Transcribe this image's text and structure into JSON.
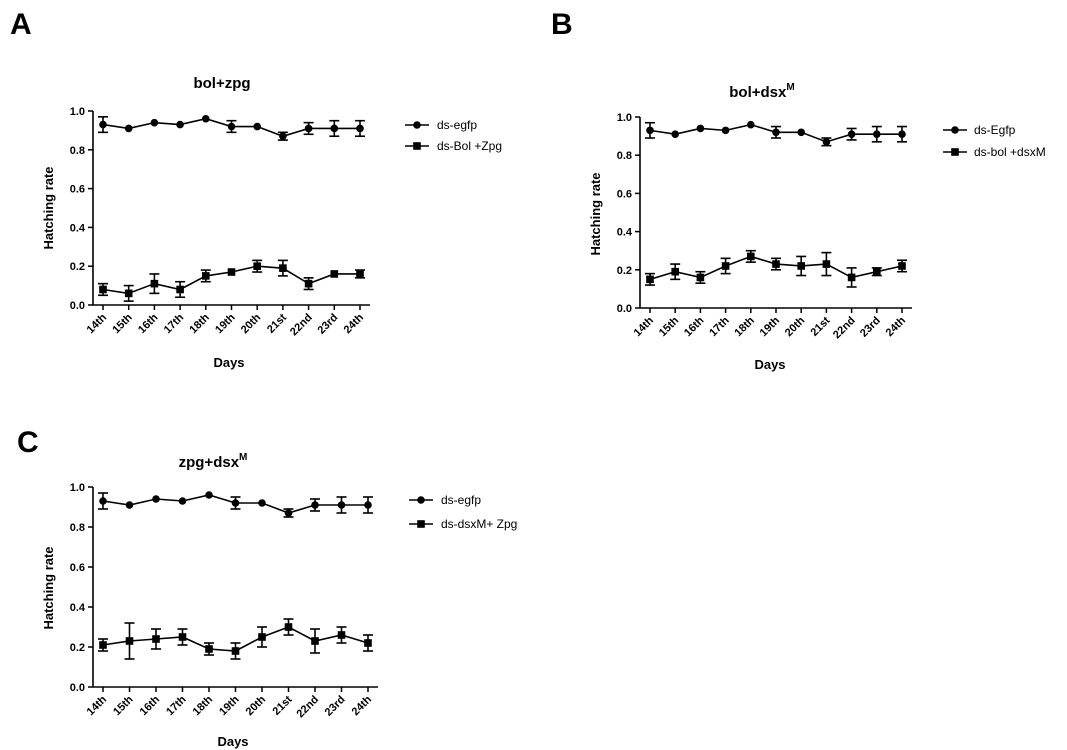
{
  "panels": [
    {
      "letter": "A",
      "title": {
        "main": "bol+zpg",
        "sup": ""
      },
      "chart_data": {
        "type": "line",
        "title": "bol+zpg",
        "xlabel": "Days",
        "ylabel": "Hatching rate",
        "categories": [
          "14th",
          "15th",
          "16th",
          "17th",
          "18th",
          "19th",
          "20th",
          "21st",
          "22nd",
          "23rd",
          "24th"
        ],
        "ylim": [
          0,
          1.0
        ],
        "yticks": [
          "0.0",
          "0.2",
          "0.4",
          "0.6",
          "0.8",
          "1.0"
        ],
        "grid": false,
        "legend_position": "right",
        "series": [
          {
            "name": "ds-egfp",
            "marker": "circle",
            "values": [
              0.93,
              0.91,
              0.94,
              0.93,
              0.96,
              0.92,
              0.92,
              0.87,
              0.91,
              0.91,
              0.91
            ],
            "errors": [
              0.04,
              0.0,
              0.0,
              0.0,
              0.0,
              0.03,
              0.0,
              0.02,
              0.03,
              0.04,
              0.04
            ]
          },
          {
            "name": "ds-Bol +Zpg",
            "marker": "square",
            "values": [
              0.08,
              0.06,
              0.11,
              0.08,
              0.15,
              0.17,
              0.2,
              0.19,
              0.11,
              0.16,
              0.16
            ],
            "errors": [
              0.03,
              0.04,
              0.05,
              0.04,
              0.03,
              0.0,
              0.03,
              0.04,
              0.03,
              0.0,
              0.02
            ]
          }
        ]
      }
    },
    {
      "letter": "B",
      "title": {
        "main": "bol+dsx",
        "sup": "M"
      },
      "chart_data": {
        "type": "line",
        "title": "bol+dsx M",
        "xlabel": "Days",
        "ylabel": "Hatching rate",
        "categories": [
          "14th",
          "15th",
          "16th",
          "17th",
          "18th",
          "19th",
          "20th",
          "21st",
          "22nd",
          "23rd",
          "24th"
        ],
        "ylim": [
          0,
          1.0
        ],
        "yticks": [
          "0.0",
          "0.2",
          "0.4",
          "0.6",
          "0.8",
          "1.0"
        ],
        "grid": false,
        "legend_position": "right",
        "series": [
          {
            "name": "ds-Egfp",
            "marker": "circle",
            "values": [
              0.93,
              0.91,
              0.94,
              0.93,
              0.96,
              0.92,
              0.92,
              0.87,
              0.91,
              0.91,
              0.91
            ],
            "errors": [
              0.04,
              0.0,
              0.0,
              0.0,
              0.0,
              0.03,
              0.0,
              0.02,
              0.03,
              0.04,
              0.04
            ]
          },
          {
            "name": "ds-bol +dsxM",
            "marker": "square",
            "values": [
              0.15,
              0.19,
              0.16,
              0.22,
              0.27,
              0.23,
              0.22,
              0.23,
              0.16,
              0.19,
              0.22
            ],
            "errors": [
              0.03,
              0.04,
              0.03,
              0.04,
              0.03,
              0.03,
              0.05,
              0.06,
              0.05,
              0.02,
              0.03
            ]
          }
        ]
      }
    },
    {
      "letter": "C",
      "title": {
        "main": "zpg+dsx",
        "sup": "M"
      },
      "chart_data": {
        "type": "line",
        "title": "zpg+dsx M",
        "xlabel": "Days",
        "ylabel": "Hatching rate",
        "categories": [
          "14th",
          "15th",
          "16th",
          "17th",
          "18th",
          "19th",
          "20th",
          "21st",
          "22nd",
          "23rd",
          "24th"
        ],
        "ylim": [
          0,
          1.0
        ],
        "yticks": [
          "0.0",
          "0.2",
          "0.4",
          "0.6",
          "0.8",
          "1.0"
        ],
        "grid": false,
        "legend_position": "right",
        "series": [
          {
            "name": "ds-egfp",
            "marker": "circle",
            "values": [
              0.93,
              0.91,
              0.94,
              0.93,
              0.96,
              0.92,
              0.92,
              0.87,
              0.91,
              0.91,
              0.91
            ],
            "errors": [
              0.04,
              0.0,
              0.0,
              0.0,
              0.0,
              0.03,
              0.0,
              0.02,
              0.03,
              0.04,
              0.04
            ]
          },
          {
            "name": "ds-dsxM+ Zpg",
            "marker": "square",
            "values": [
              0.21,
              0.23,
              0.24,
              0.25,
              0.19,
              0.18,
              0.25,
              0.3,
              0.23,
              0.26,
              0.22
            ],
            "errors": [
              0.03,
              0.09,
              0.05,
              0.04,
              0.03,
              0.04,
              0.05,
              0.04,
              0.06,
              0.04,
              0.04
            ]
          }
        ]
      }
    }
  ]
}
